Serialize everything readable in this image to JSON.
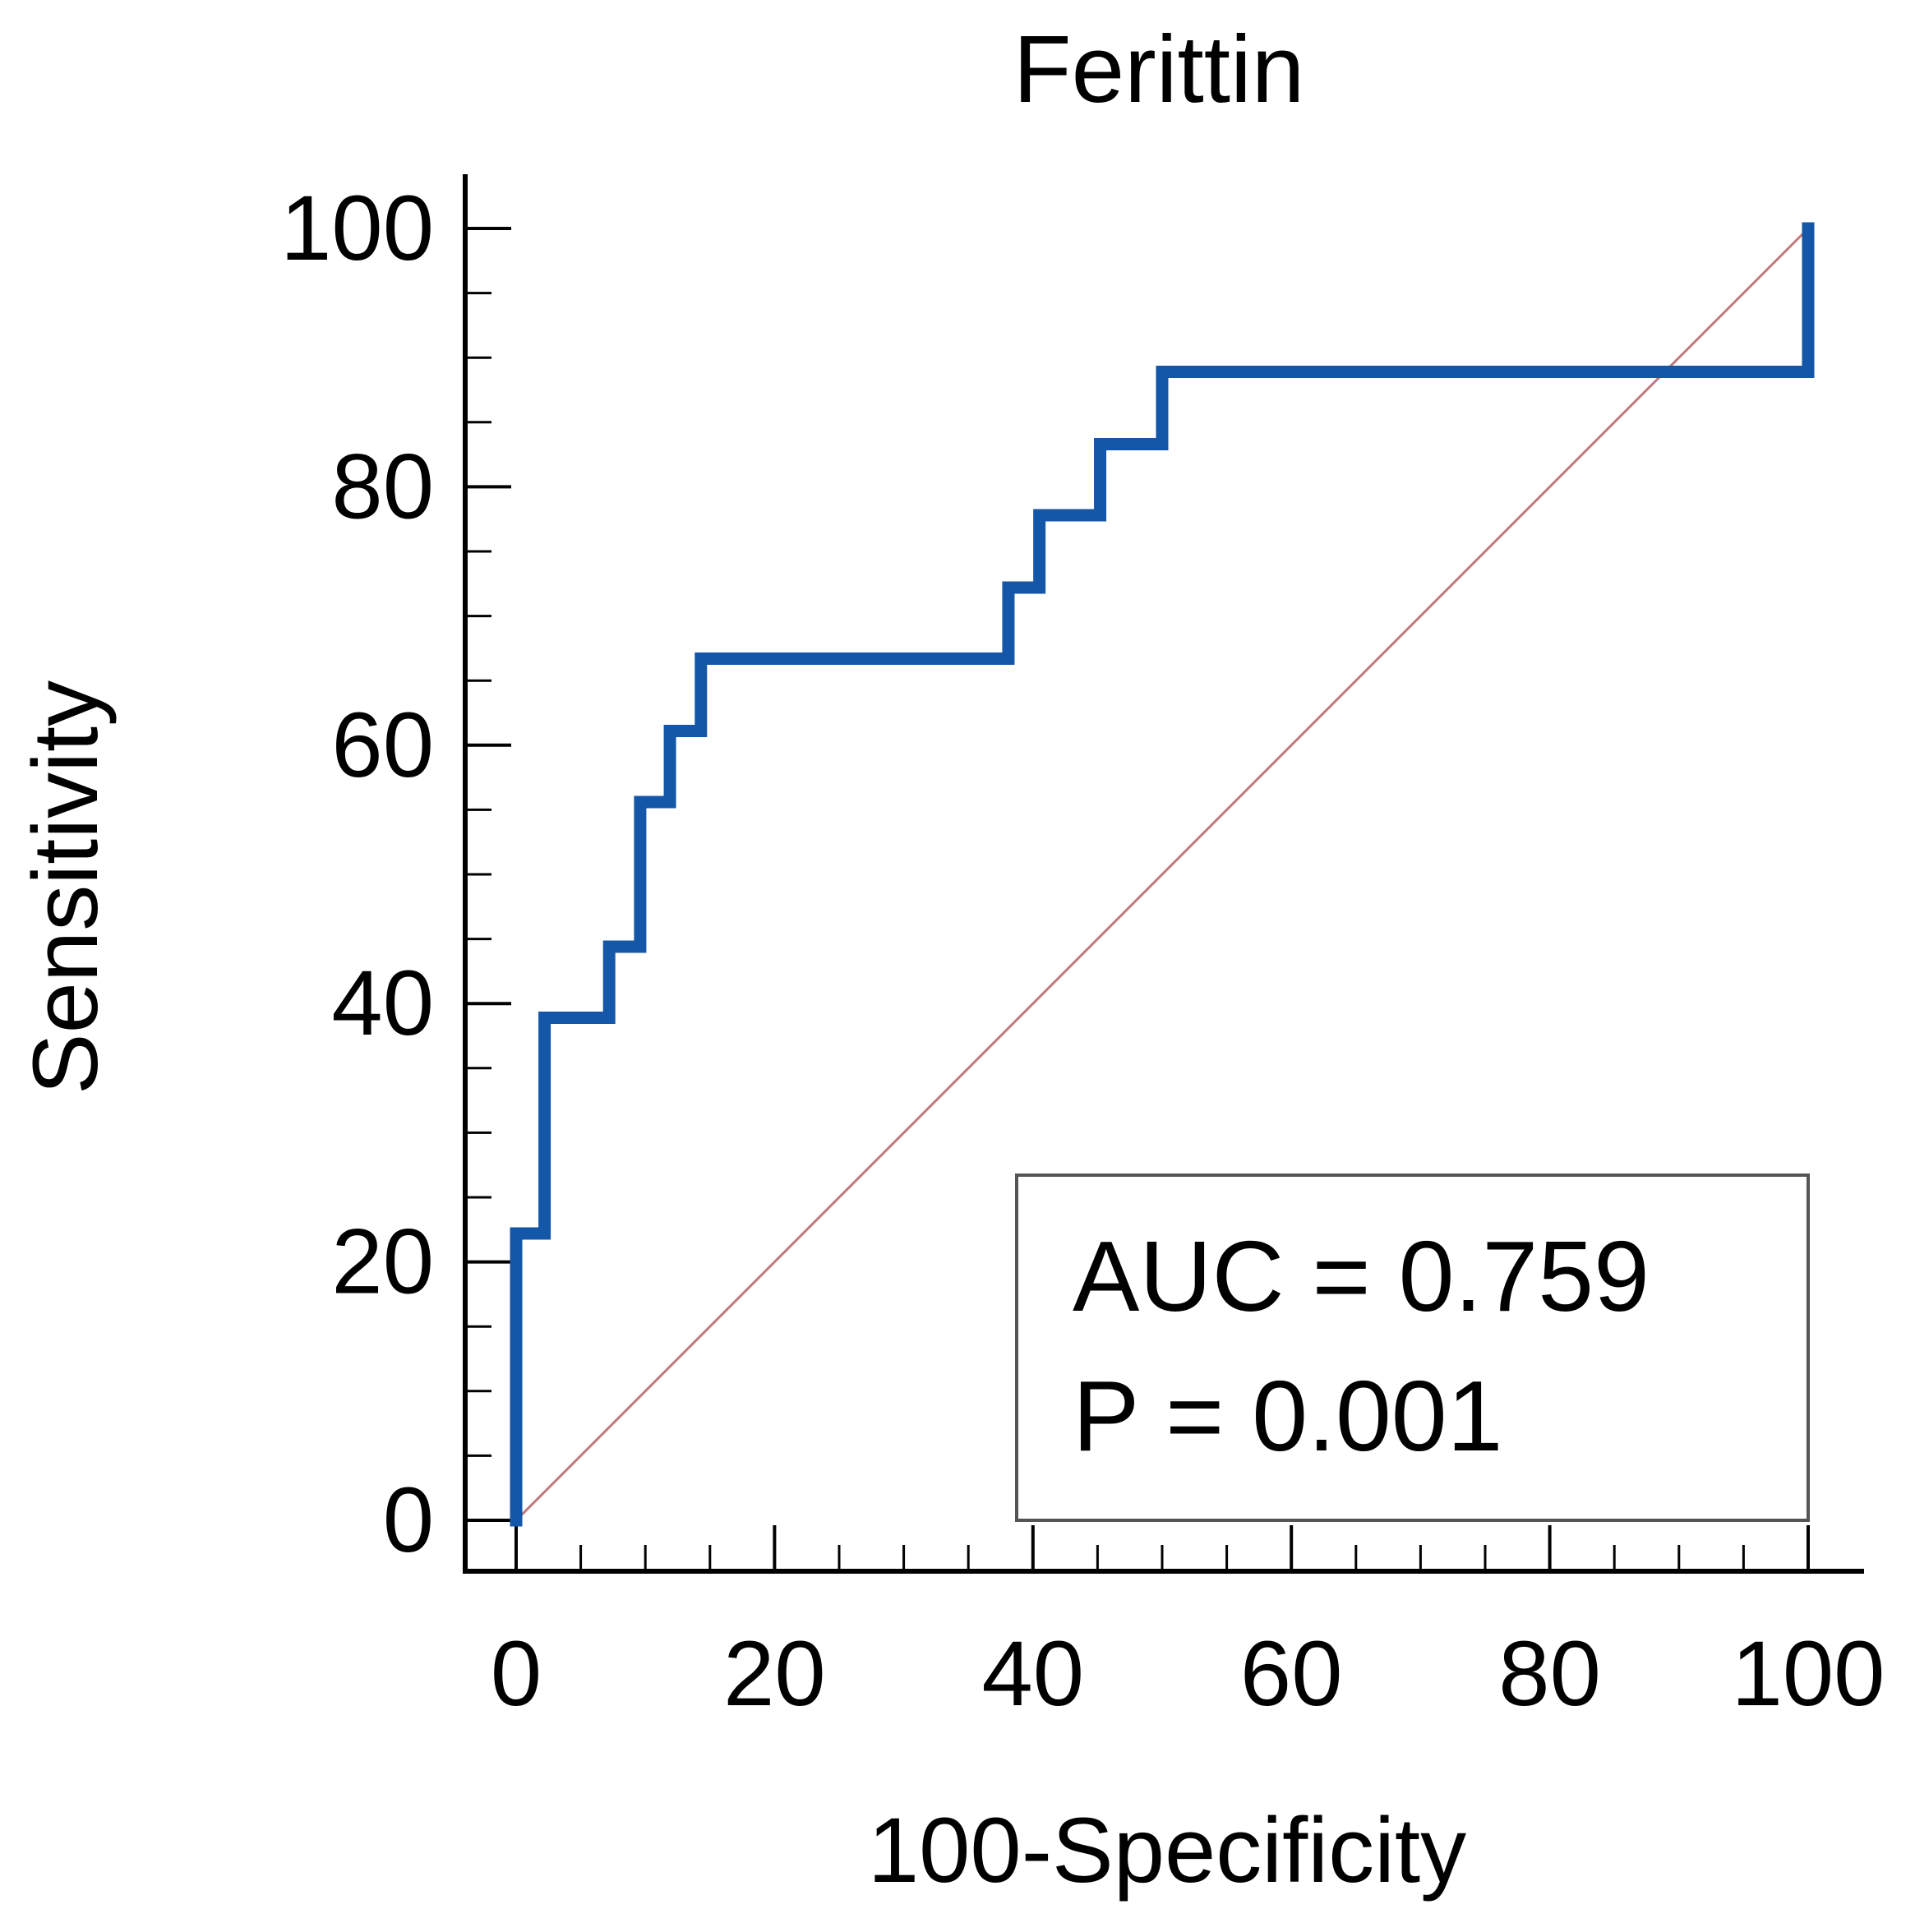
{
  "chart_data": {
    "type": "line",
    "title": "Ferittin",
    "xlabel": "100-Specificity",
    "ylabel": "Sensitivity",
    "xlim": [
      0,
      100
    ],
    "ylim": [
      0,
      100
    ],
    "x_ticks": [
      0,
      20,
      40,
      60,
      80,
      100
    ],
    "y_ticks": [
      0,
      20,
      40,
      60,
      80,
      100
    ],
    "x_tick_labels": [
      "0",
      "20",
      "40",
      "60",
      "80",
      "100"
    ],
    "y_tick_labels": [
      "0",
      "20",
      "40",
      "60",
      "80",
      "100"
    ],
    "minor_tick_step": 5,
    "grid": false,
    "series": [
      {
        "name": "ROC curve",
        "color": "#1457a8",
        "x": [
          0,
          0,
          2.2,
          2.2,
          7.2,
          7.2,
          9.6,
          9.6,
          11.9,
          11.9,
          14.3,
          14.3,
          38.1,
          38.1,
          40.5,
          40.5,
          45.2,
          45.2,
          50,
          50,
          100,
          100
        ],
        "y": [
          0,
          22.2,
          22.2,
          38.9,
          38.9,
          44.4,
          44.4,
          55.6,
          55.6,
          61.1,
          61.1,
          66.7,
          66.7,
          72.2,
          72.2,
          77.8,
          77.8,
          83.3,
          83.3,
          88.9,
          88.9,
          100
        ]
      },
      {
        "name": "Reference line",
        "color": "#c07a7a",
        "x": [
          0,
          100
        ],
        "y": [
          0,
          100
        ]
      }
    ],
    "annotations": {
      "auc": "AUC = 0.759",
      "p": "P = 0.001",
      "placement": "bottom-right"
    }
  }
}
